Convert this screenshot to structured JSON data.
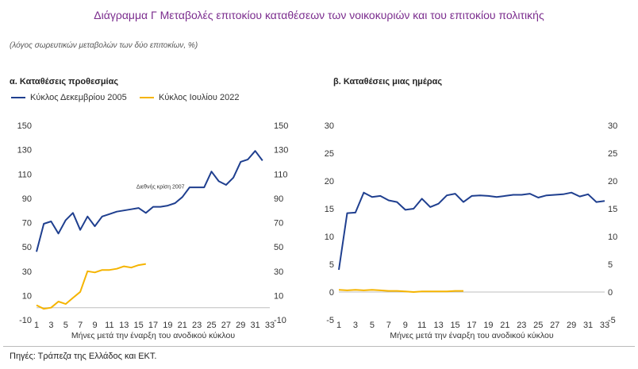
{
  "title": "Διάγραμμα Γ Μεταβολές επιτοκίου καταθέσεων των νοικοκυριών και του επιτοκίου πολιτικής",
  "subtitle": "(λόγος σωρευτικών μεταβολών των δύο επιτοκίων, %)",
  "source": "Πηγές: Τράπεζα της Ελλάδος και ΕΚΤ.",
  "colors": {
    "navy": "#1f3f8f",
    "gold": "#f5b400",
    "title": "#7b2d8e"
  },
  "chart_data": [
    {
      "type": "line",
      "title": "α. Καταθέσεις προθεσμίας",
      "xlabel": "Μήνες μετά την έναρξη του ανοδικού κύκλου",
      "ylabel": "",
      "xlim": [
        1,
        33
      ],
      "ylim": [
        -10,
        150
      ],
      "yticks": [
        -10,
        10,
        30,
        50,
        70,
        90,
        110,
        130,
        150
      ],
      "xticks": [
        1,
        3,
        5,
        7,
        9,
        11,
        13,
        15,
        17,
        19,
        21,
        23,
        25,
        27,
        29,
        31,
        33
      ],
      "grid": false,
      "legend": "top-left",
      "annotations": [
        {
          "text": "Διεθνής κρίση 2007",
          "x": 18,
          "y": 98
        }
      ],
      "series": [
        {
          "name": "Κύκλος Δεκεμβρίου 2005",
          "color": "#1f3f8f",
          "x": [
            1,
            2,
            3,
            4,
            5,
            6,
            7,
            8,
            9,
            10,
            11,
            12,
            13,
            14,
            15,
            16,
            17,
            18,
            19,
            20,
            21,
            22,
            23,
            24,
            25,
            26,
            27,
            28,
            29,
            30,
            31,
            32
          ],
          "values": [
            46,
            69,
            71,
            61,
            72,
            78,
            64,
            75,
            67,
            75,
            77,
            79,
            80,
            81,
            82,
            78,
            83,
            83,
            84,
            86,
            91,
            99,
            99,
            99,
            112,
            104,
            101,
            107,
            120,
            122,
            129,
            121
          ]
        },
        {
          "name": "Κύκλος Ιουλίου 2022",
          "color": "#f5b400",
          "x": [
            1,
            2,
            3,
            4,
            5,
            6,
            7,
            8,
            9,
            10,
            11,
            12,
            13,
            14,
            15,
            16
          ],
          "values": [
            2,
            -1,
            0,
            5,
            3,
            8,
            13,
            30,
            29,
            31,
            31,
            32,
            34,
            33,
            35,
            36
          ]
        }
      ]
    },
    {
      "type": "line",
      "title": "β. Καταθέσεις μιας ημέρας",
      "xlabel": "Μήνες μετά την έναρξη του ανοδικού κύκλου",
      "ylabel": "",
      "xlim": [
        1,
        33
      ],
      "ylim": [
        -5,
        30
      ],
      "yticks": [
        -5,
        0,
        5,
        10,
        15,
        20,
        25,
        30
      ],
      "xticks": [
        1,
        3,
        5,
        7,
        9,
        11,
        13,
        15,
        17,
        19,
        21,
        23,
        25,
        27,
        29,
        31,
        33
      ],
      "grid": false,
      "legend": "top-left",
      "series": [
        {
          "name": "Κύκλος Δεκεμβρίου 2005",
          "color": "#1f3f8f",
          "x": [
            1,
            2,
            3,
            4,
            5,
            6,
            7,
            8,
            9,
            10,
            11,
            12,
            13,
            14,
            15,
            16,
            17,
            18,
            19,
            20,
            21,
            22,
            23,
            24,
            25,
            26,
            27,
            28,
            29,
            30,
            31,
            32,
            33
          ],
          "values": [
            4,
            14.2,
            14.3,
            17.9,
            17.1,
            17.3,
            16.5,
            16.2,
            14.8,
            15.0,
            16.8,
            15.3,
            15.9,
            17.4,
            17.7,
            16.2,
            17.3,
            17.4,
            17.3,
            17.1,
            17.3,
            17.5,
            17.5,
            17.7,
            17.0,
            17.4,
            17.5,
            17.6,
            17.9,
            17.2,
            17.6,
            16.2,
            16.4
          ]
        },
        {
          "name": "Κύκλος Ιουλίου 2022",
          "color": "#f5b400",
          "x": [
            1,
            2,
            3,
            4,
            5,
            6,
            7,
            8,
            9,
            10,
            11,
            12,
            13,
            14,
            15,
            16
          ],
          "values": [
            0.4,
            0.3,
            0.4,
            0.3,
            0.4,
            0.3,
            0.2,
            0.2,
            0.1,
            0.0,
            0.1,
            0.1,
            0.1,
            0.1,
            0.2,
            0.2
          ]
        }
      ]
    }
  ]
}
